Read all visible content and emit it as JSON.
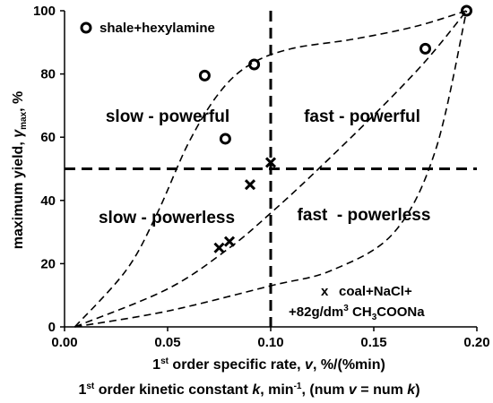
{
  "chart_data": {
    "type": "scatter",
    "title": "",
    "xlabel": {
      "line1": {
        "sup": "st",
        "prefix": "1",
        "pre": " order specific rate, ",
        "var": "v",
        "post": ", %/(%min)"
      },
      "line2": {
        "prefix": "1",
        "sup": "st",
        "pre": " order kinetic constant ",
        "var": "k",
        "mid": ", min",
        "exp": "-1",
        "post": ", (num ",
        "var2": "v",
        "eq": " = num ",
        "var3": "k",
        "end": ")"
      }
    },
    "ylabel": {
      "pre": "maximum yield, ",
      "var": "γ",
      "sub": "max",
      "post": ", %"
    },
    "xlim": [
      0,
      0.2
    ],
    "ylim": [
      0,
      100
    ],
    "x_ticks": [
      "0.00",
      "0.05",
      "0.10",
      "0.15",
      "0.20"
    ],
    "y_ticks": [
      "0",
      "20",
      "40",
      "60",
      "80",
      "100"
    ],
    "grid": false,
    "series": [
      {
        "name": "shale+hexylamine",
        "marker": "circle",
        "points": [
          {
            "x": 0.068,
            "y": 79.5
          },
          {
            "x": 0.078,
            "y": 59.5
          },
          {
            "x": 0.092,
            "y": 83
          },
          {
            "x": 0.175,
            "y": 88
          },
          {
            "x": 0.195,
            "y": 100
          }
        ]
      },
      {
        "name": {
          "line1": "coal+NaCl+",
          "line2_pre": "+82g/dm",
          "line2_sup": "3",
          "line2_mid": " CH",
          "line2_sub1": "3",
          "line2_post": "COONa"
        },
        "marker": "x",
        "points": [
          {
            "x": 0.075,
            "y": 25
          },
          {
            "x": 0.08,
            "y": 27
          },
          {
            "x": 0.09,
            "y": 45
          },
          {
            "x": 0.1,
            "y": 52
          }
        ]
      }
    ],
    "reference_lines": {
      "horizontal_y": 50,
      "vertical_x": 0.1
    },
    "dashed_curves": [
      {
        "points": [
          [
            0.005,
            0
          ],
          [
            0.03,
            18
          ],
          [
            0.045,
            36
          ],
          [
            0.06,
            58
          ],
          [
            0.075,
            74
          ],
          [
            0.09,
            83
          ],
          [
            0.11,
            88
          ],
          [
            0.14,
            91
          ],
          [
            0.17,
            95
          ],
          [
            0.195,
            100
          ]
        ]
      },
      {
        "points": [
          [
            0.005,
            0
          ],
          [
            0.05,
            12
          ],
          [
            0.08,
            25
          ],
          [
            0.1,
            36
          ],
          [
            0.12,
            48
          ],
          [
            0.15,
            67
          ],
          [
            0.175,
            84
          ],
          [
            0.195,
            100
          ]
        ]
      },
      {
        "points": [
          [
            0.005,
            0
          ],
          [
            0.05,
            5
          ],
          [
            0.1,
            13
          ],
          [
            0.13,
            18
          ],
          [
            0.16,
            30
          ],
          [
            0.18,
            56
          ],
          [
            0.195,
            100
          ]
        ]
      }
    ],
    "region_labels": [
      "slow - powerful",
      "fast - powerful",
      "slow - powerless",
      "fast  - powerless"
    ]
  }
}
